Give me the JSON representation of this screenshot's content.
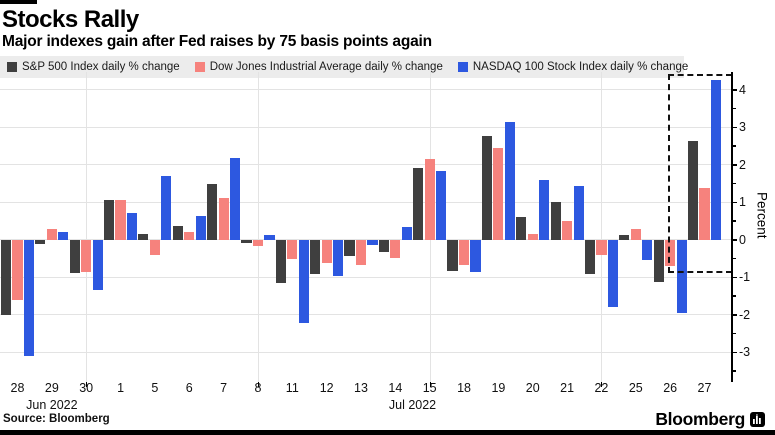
{
  "header": {
    "title": "Stocks Rally",
    "subtitle": "Major indexes gain after Fed raises by 75 basis points again"
  },
  "legend": [
    {
      "label": "S&P 500 Index daily % change",
      "color": "#3f3f3f"
    },
    {
      "label": "Dow Jones Industrial Average daily % change",
      "color": "#f6827d"
    },
    {
      "label": "NASDAQ 100 Stock Index daily % change",
      "color": "#2d58e0"
    }
  ],
  "chart_data": {
    "type": "bar",
    "title": "Stocks Rally",
    "subtitle": "Major indexes gain after Fed raises by 75 basis points again",
    "categories": [
      "28",
      "29",
      "30",
      "1",
      "5",
      "6",
      "7",
      "8",
      "11",
      "12",
      "13",
      "14",
      "15",
      "18",
      "19",
      "20",
      "21",
      "22",
      "25",
      "26",
      "27"
    ],
    "series": [
      {
        "name": "S&P 500 Index daily % change",
        "color": "#3f3f3f",
        "values": [
          -2.01,
          -0.12,
          -0.89,
          1.05,
          0.16,
          0.36,
          1.48,
          -0.1,
          -1.15,
          -0.92,
          -0.45,
          -0.33,
          1.92,
          -0.84,
          2.76,
          0.59,
          0.99,
          -0.93,
          0.11,
          -1.13,
          2.62
        ]
      },
      {
        "name": "Dow Jones Industrial Average daily % change",
        "color": "#f6827d",
        "values": [
          -1.6,
          0.27,
          -0.86,
          1.05,
          -0.4,
          0.21,
          1.12,
          -0.16,
          -0.53,
          -0.63,
          -0.68,
          -0.49,
          2.15,
          -0.69,
          2.43,
          0.16,
          0.5,
          -0.4,
          0.27,
          -0.71,
          1.37
        ]
      },
      {
        "name": "NASDAQ 100 Stock Index daily % change",
        "color": "#2d58e0",
        "values": [
          -3.11,
          0.19,
          -1.35,
          0.7,
          1.69,
          0.63,
          2.17,
          0.13,
          -2.22,
          -0.97,
          -0.15,
          0.34,
          1.83,
          -0.87,
          3.14,
          1.58,
          1.43,
          -1.8,
          -0.55,
          -1.97,
          4.26
        ]
      }
    ],
    "xlabel": "",
    "ylabel": "Percent",
    "ylim": [
      -3.8,
      4.45
    ],
    "yticks_major": [
      4,
      3,
      2,
      1,
      0,
      -1,
      -2,
      -3
    ],
    "yticks_minor": [
      3.5,
      2.5,
      1.5,
      0.5,
      -0.5,
      -1.5,
      -2.5,
      -3.5
    ],
    "month_labels": [
      {
        "label": "Jun 2022",
        "anchor_index": 1
      },
      {
        "label": "Jul 2022",
        "anchor_index": 11.5
      }
    ],
    "grid_vertical_indices": [
      2,
      7,
      12,
      17
    ],
    "grid": true,
    "legend_position": "top",
    "highlight_box": {
      "around_categories": [
        "26",
        "27"
      ],
      "value_floor": -0.9,
      "value_ceiling": 4.42
    }
  },
  "footer": {
    "source": "Source: Bloomberg",
    "brand": "Bloomberg"
  }
}
